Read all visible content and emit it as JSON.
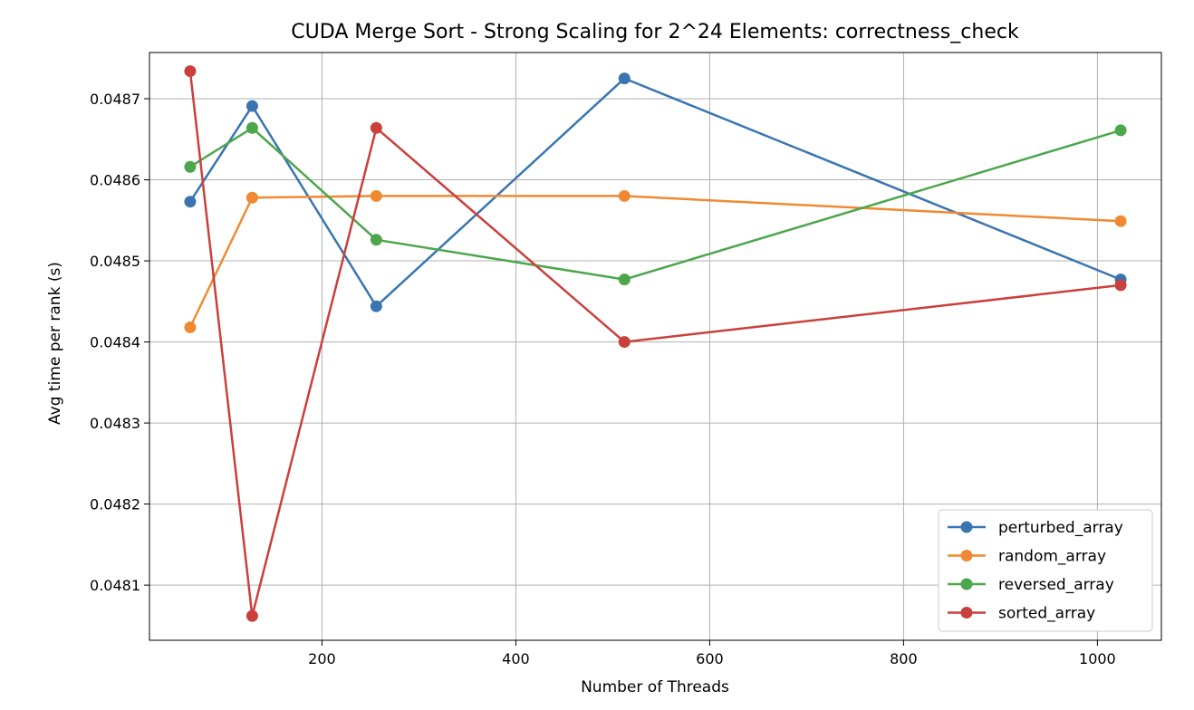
{
  "chart_data": {
    "type": "line",
    "title": "CUDA Merge Sort - Strong Scaling for 2^24 Elements: correctness_check",
    "xlabel": "Number of Threads",
    "ylabel": "Avg time per rank (s)",
    "x": [
      64,
      128,
      256,
      512,
      1024
    ],
    "xlim": [
      22,
      1066
    ],
    "ylim": [
      0.048032,
      0.048757
    ],
    "xticks": [
      200,
      400,
      600,
      800,
      1000
    ],
    "yticks": [
      0.0481,
      0.0482,
      0.0483,
      0.0484,
      0.0485,
      0.0486,
      0.0487
    ],
    "xtick_labels": [
      "200",
      "400",
      "600",
      "800",
      "1000"
    ],
    "ytick_labels": [
      "0.0481",
      "0.0482",
      "0.0483",
      "0.0484",
      "0.0485",
      "0.0486",
      "0.0487"
    ],
    "grid": true,
    "legend_position": "lower-right",
    "marker": "circle",
    "series": [
      {
        "name": "perturbed_array",
        "color": "#3a75b0",
        "values": [
          0.048573,
          0.048691,
          0.048444,
          0.048725,
          0.048477
        ]
      },
      {
        "name": "random_array",
        "color": "#ef8a33",
        "values": [
          0.048418,
          0.048578,
          0.04858,
          0.04858,
          0.048549
        ]
      },
      {
        "name": "reversed_array",
        "color": "#4ca64c",
        "values": [
          0.048616,
          0.048664,
          0.048526,
          0.048477,
          0.048661
        ]
      },
      {
        "name": "sorted_array",
        "color": "#c9403d",
        "values": [
          0.048734,
          0.048062,
          0.048664,
          0.0484,
          0.04847
        ]
      }
    ]
  }
}
